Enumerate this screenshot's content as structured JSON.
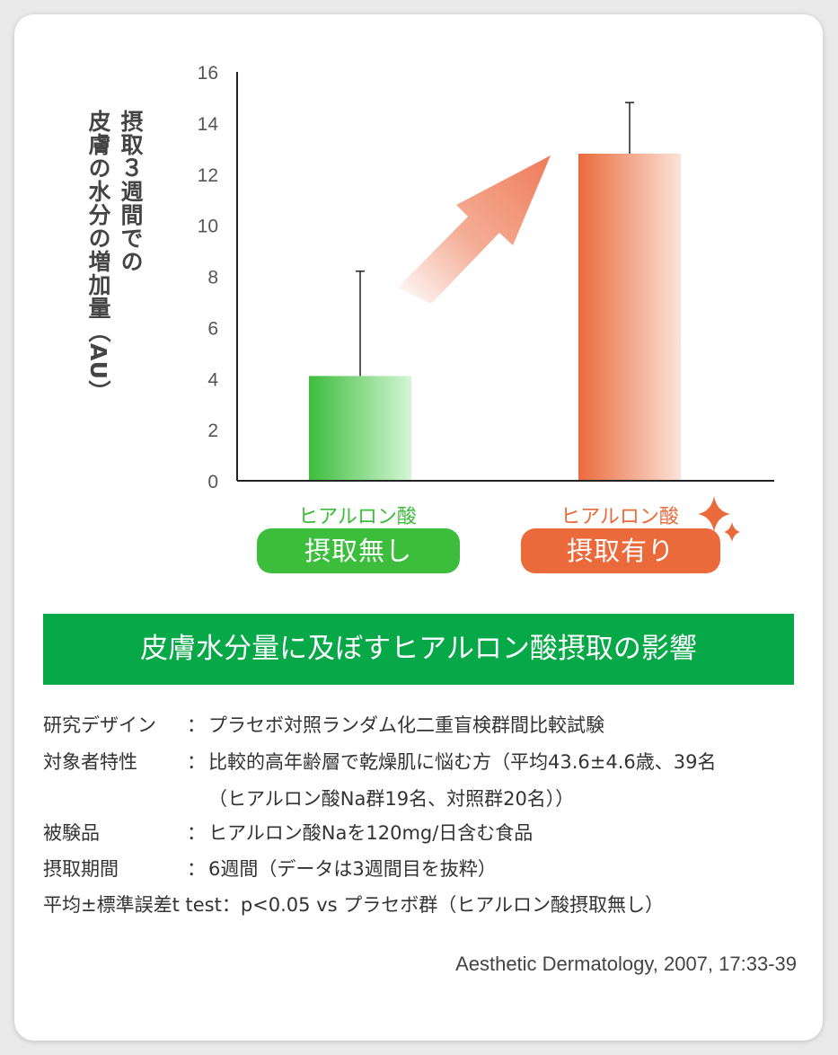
{
  "chart_data": {
    "type": "bar",
    "categories": [
      "ヒアルロン酸 摂取無し",
      "ヒアルロン酸 摂取有り"
    ],
    "values": [
      4.1,
      12.8
    ],
    "error": [
      4.1,
      2.0
    ],
    "ylabel_lines": [
      "摂取３週間での",
      "皮膚の水分の増加量（AU）"
    ],
    "ylim": [
      0,
      16
    ],
    "yticks": [
      0,
      2,
      4,
      6,
      8,
      10,
      12,
      14,
      16
    ],
    "grid": false,
    "colors": [
      "#3cbd3c",
      "#ea6a3c"
    ]
  },
  "categories_labels": [
    {
      "sub": "ヒアルロン酸",
      "main": "摂取無し"
    },
    {
      "sub": "ヒアルロン酸",
      "main": "摂取有り"
    }
  ],
  "title": "皮膚水分量に及ぼすヒアルロン酸摂取の影響",
  "study": {
    "design": {
      "label": "研究デザイン",
      "value": "プラセボ対照ランダム化二重盲検群間比較試験"
    },
    "subjects": {
      "label": "対象者特性",
      "value": "比較的高年齢層で乾燥肌に悩む方（平均43.6±4.6歳、39名",
      "value2": "（ヒアルロン酸Na群19名、対照群20名））"
    },
    "product": {
      "label": "被験品",
      "value": "ヒアルロン酸Naを120mg/日含む食品"
    },
    "period": {
      "label": "摂取期間",
      "value": "6週間（データは3週間目を抜粋）"
    },
    "stats": "平均±標準誤差t test：p<0.05 vs プラセボ群（ヒアルロン酸摂取無し）",
    "colon": "："
  },
  "citation": "Aesthetic Dermatology, 2007, 17:33-39"
}
